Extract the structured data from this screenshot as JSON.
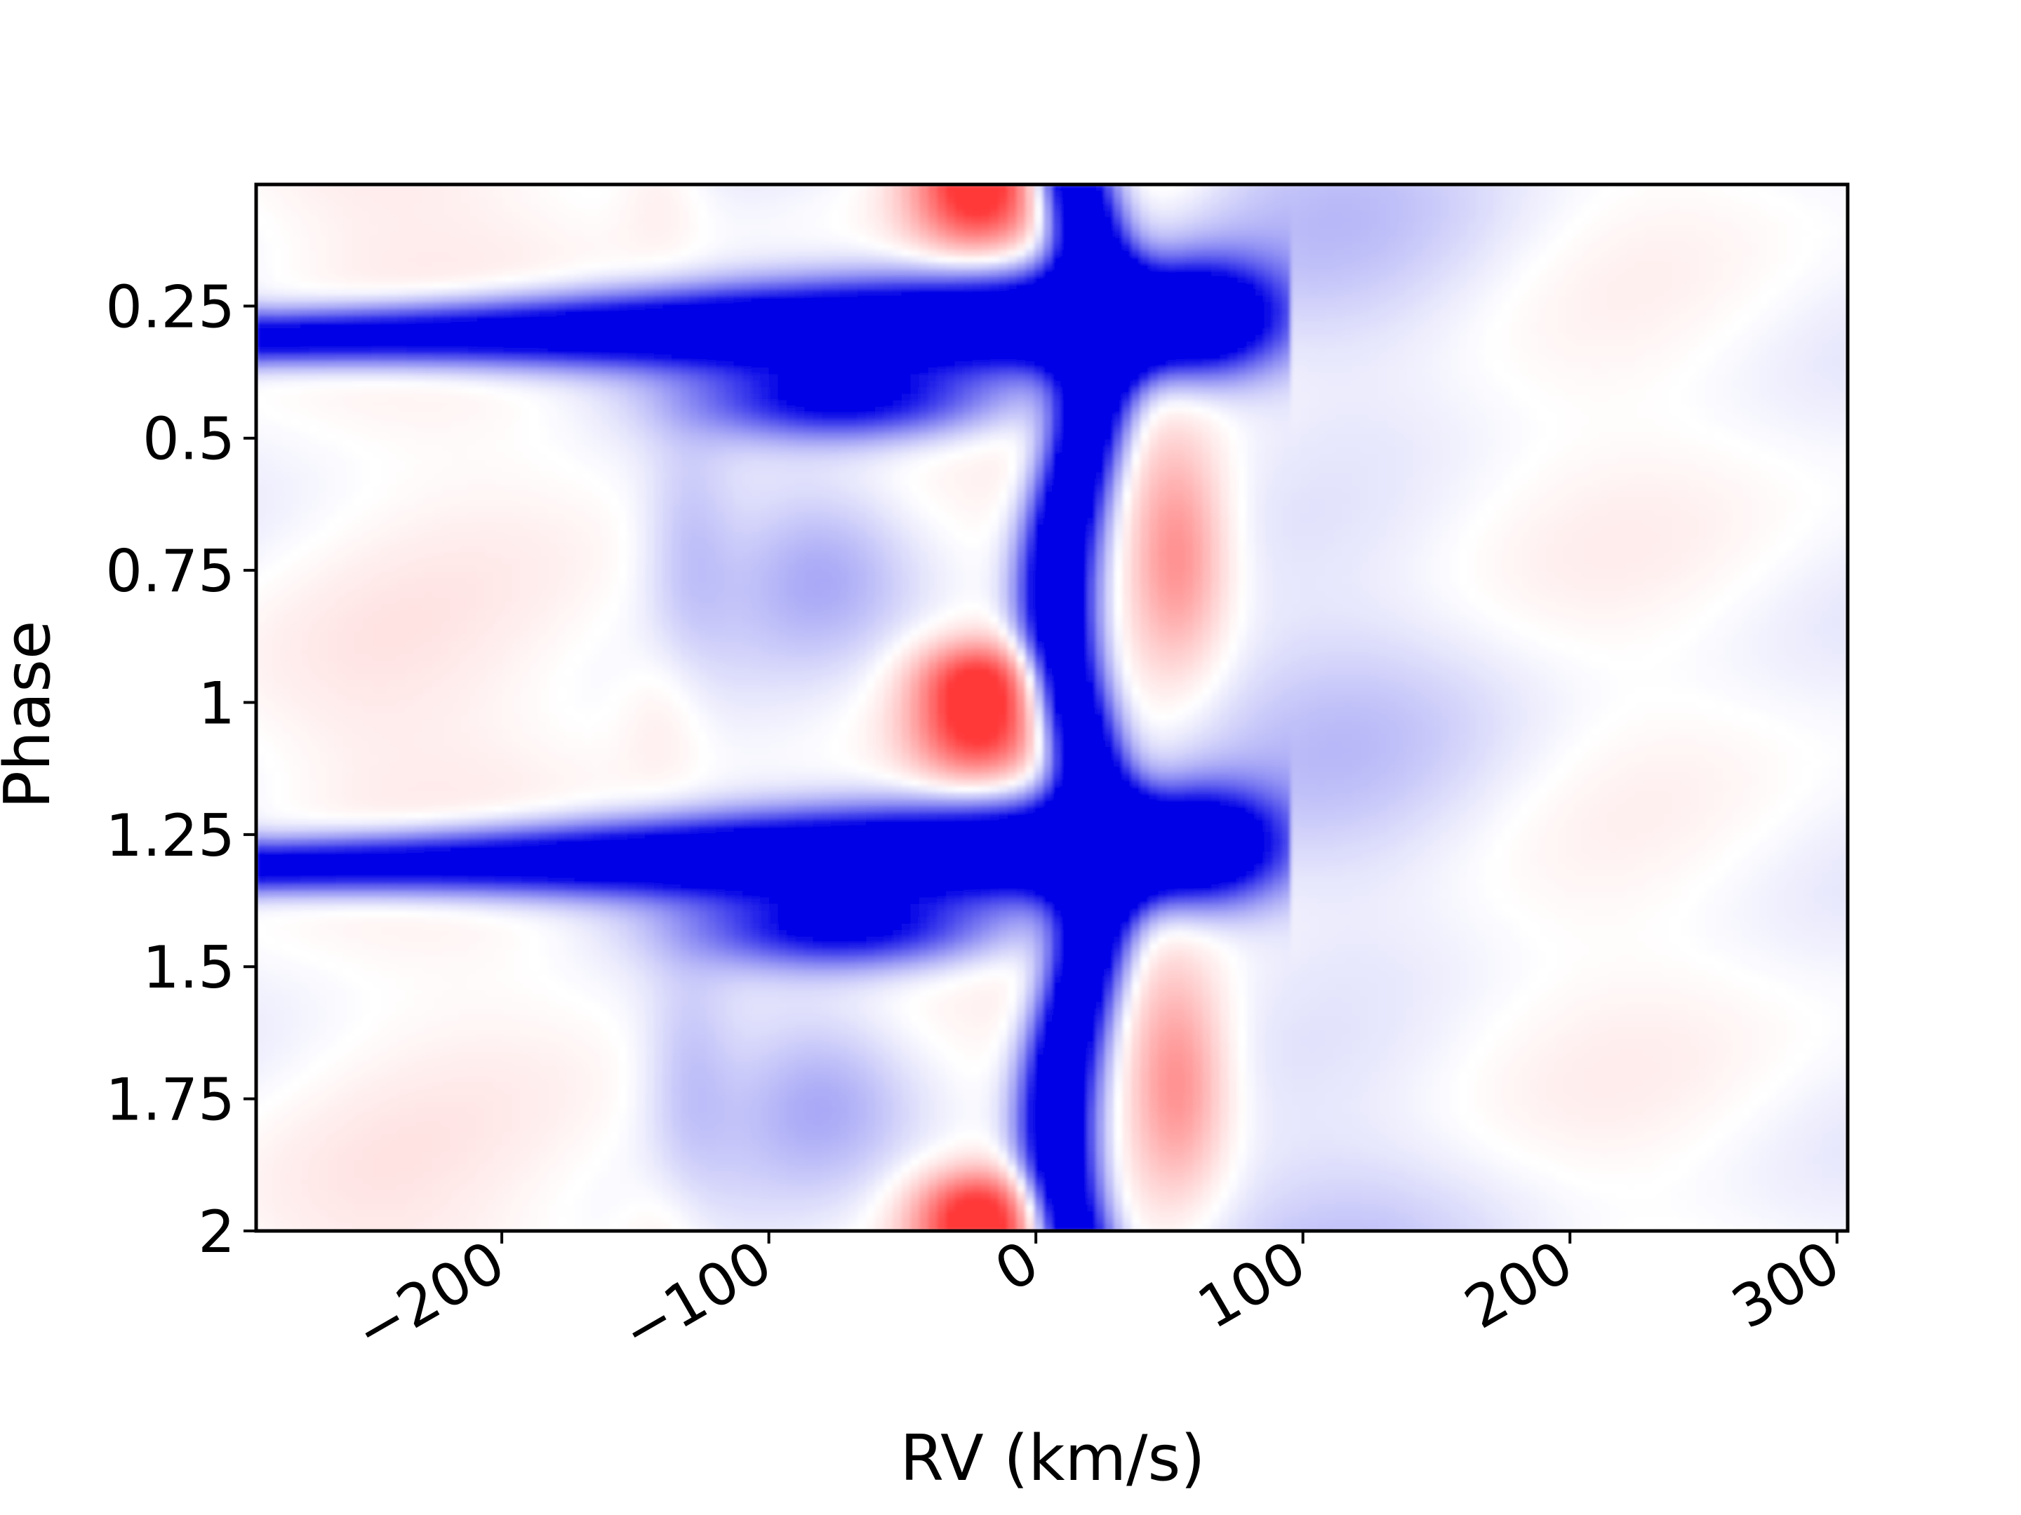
{
  "chart_data": {
    "type": "heatmap",
    "title": "",
    "xlabel": "RV (km/s)",
    "ylabel": "Phase",
    "xlim": [
      -292,
      304
    ],
    "ylim": [
      2.0,
      0.02
    ],
    "x_ticks": [
      -200,
      -100,
      0,
      100,
      200,
      300
    ],
    "x_tick_labels": [
      "−200",
      "−100",
      "0",
      "100",
      "200",
      "300"
    ],
    "y_ticks": [
      0.25,
      0.5,
      0.75,
      1,
      1.25,
      1.5,
      1.75,
      2
    ],
    "y_tick_labels": [
      "0.25",
      "0.5",
      "0.75",
      "1",
      "1.25",
      "1.5",
      "1.75",
      "2"
    ],
    "y_inverted": true,
    "grid": false,
    "colormap": "bwr (blue = absorption/negative, white = zero, red = emission/positive)",
    "colors": {
      "negative": "#0000e6",
      "zero": "#ffffff",
      "positive": "#ff3a3a"
    },
    "period_in_phase": 1.0,
    "features": [
      {
        "kind": "absorption",
        "description": "strong narrow central absorption",
        "rv_center": 18,
        "rv_width": 22,
        "phase_range": [
          0,
          2
        ],
        "amplitude": -1.0
      },
      {
        "kind": "absorption",
        "description": "blueshifted absorption streak",
        "rv_range": [
          -292,
          90
        ],
        "phase_center": 0.3,
        "amplitude": -1.0
      },
      {
        "kind": "emission",
        "description": "emission lobe",
        "rv_center": -25,
        "phase_center": 1.05,
        "amplitude": 0.8
      },
      {
        "kind": "emission",
        "description": "emission lobe",
        "rv_center": 55,
        "phase_center": 0.72,
        "amplitude": 0.6
      },
      {
        "kind": "absorption",
        "description": "weak absorption",
        "rv_center": -80,
        "phase_center": 0.75,
        "amplitude": -0.22
      },
      {
        "kind": "absorption",
        "description": "weak absorption",
        "rv_center": 115,
        "phase_center": 0.08,
        "amplitude": -0.15
      }
    ]
  }
}
